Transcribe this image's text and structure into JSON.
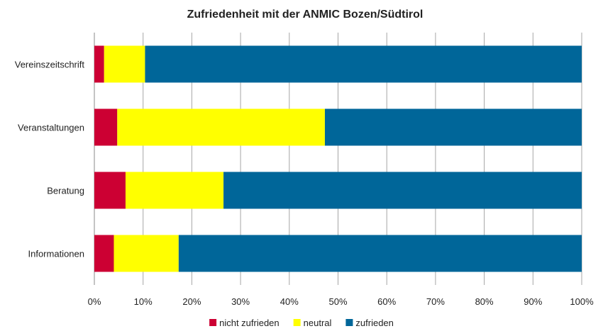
{
  "chart_data": {
    "type": "bar",
    "orientation": "horizontal",
    "stacked": "percent",
    "title": "Zufriedenheit mit der ANMIC Bozen/Südtirol",
    "xlabel": "",
    "ylabel": "",
    "categories": [
      "Vereinszeitschrift",
      "Veranstaltungen",
      "Beratung",
      "Informationen"
    ],
    "series": [
      {
        "name": "nicht zufrieden",
        "color": "#cc0033",
        "values": [
          2,
          4.7,
          6.4,
          4
        ]
      },
      {
        "name": "neutral",
        "color": "#ffff00",
        "values": [
          8.4,
          42.6,
          20.1,
          13.3
        ]
      },
      {
        "name": "zufrieden",
        "color": "#006699",
        "values": [
          89.6,
          52.7,
          73.5,
          82.7
        ]
      }
    ],
    "xlim": [
      0,
      100
    ],
    "xticks": [
      "0%",
      "10%",
      "20%",
      "30%",
      "40%",
      "50%",
      "60%",
      "70%",
      "80%",
      "90%",
      "100%"
    ],
    "grid": "vertical",
    "legend": "bottom"
  }
}
